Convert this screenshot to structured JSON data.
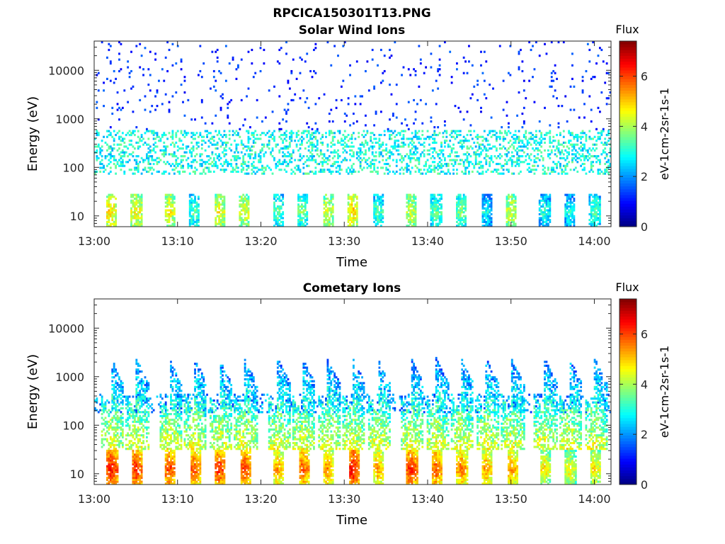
{
  "figure": {
    "title": "RPCICA150301T13.PNG"
  },
  "chart_data": [
    {
      "type": "heatmap",
      "title": "Solar Wind Ions",
      "xlabel": "Time",
      "ylabel": "Energy (eV)",
      "y_scale": "log",
      "ylim": [
        6,
        40000
      ],
      "xlim": [
        "13:00",
        "14:02"
      ],
      "x_ticks": [
        "13:00",
        "13:10",
        "13:20",
        "13:30",
        "13:40",
        "13:50",
        "14:00"
      ],
      "y_ticks": [
        "10",
        "100",
        "1000",
        "10000"
      ],
      "colorbar": {
        "title": "Flux",
        "label": "eV-1cm-2sr-1s-1",
        "range": [
          0,
          7.4
        ],
        "ticks": [
          "0",
          "2",
          "4",
          "6"
        ],
        "colormap": "jet"
      },
      "grid": false,
      "bursts": [
        {
          "t": "13:02",
          "peak": 5
        },
        {
          "t": "13:05",
          "peak": 4.8
        },
        {
          "t": "13:09",
          "peak": 4.7
        },
        {
          "t": "13:12",
          "peak": 3.5
        },
        {
          "t": "13:15",
          "peak": 4.6
        },
        {
          "t": "13:18",
          "peak": 4.6
        },
        {
          "t": "13:22",
          "peak": 3.6
        },
        {
          "t": "13:25",
          "peak": 3.8
        },
        {
          "t": "13:28",
          "peak": 4.5
        },
        {
          "t": "13:31",
          "peak": 5.0
        },
        {
          "t": "13:34",
          "peak": 3.5
        },
        {
          "t": "13:38",
          "peak": 4.4
        },
        {
          "t": "13:41",
          "peak": 3.6
        },
        {
          "t": "13:44",
          "peak": 3.8
        },
        {
          "t": "13:47",
          "peak": 3.0
        },
        {
          "t": "13:50",
          "peak": 4.5
        },
        {
          "t": "13:54",
          "peak": 3.2
        },
        {
          "t": "13:57",
          "peak": 3.0
        },
        {
          "t": "14:00",
          "peak": 3.5
        }
      ]
    },
    {
      "type": "heatmap",
      "title": "Cometary Ions",
      "xlabel": "Time",
      "ylabel": "Energy (eV)",
      "y_scale": "log",
      "ylim": [
        6,
        40000
      ],
      "xlim": [
        "13:00",
        "14:02"
      ],
      "x_ticks": [
        "13:00",
        "13:10",
        "13:20",
        "13:30",
        "13:40",
        "13:50",
        "14:00"
      ],
      "y_ticks": [
        "10",
        "100",
        "1000",
        "10000"
      ],
      "colorbar": {
        "title": "Flux",
        "label": "eV-1cm-2sr-1s-1",
        "range": [
          0,
          7.4
        ],
        "ticks": [
          "0",
          "2",
          "4",
          "6"
        ],
        "colormap": "jet"
      },
      "grid": false,
      "bursts": [
        {
          "t": "13:02",
          "peak": 6.5
        },
        {
          "t": "13:05",
          "peak": 6.4
        },
        {
          "t": "13:09",
          "peak": 6.2
        },
        {
          "t": "13:12",
          "peak": 6.0
        },
        {
          "t": "13:15",
          "peak": 6.3
        },
        {
          "t": "13:18",
          "peak": 6.2
        },
        {
          "t": "13:22",
          "peak": 5.5
        },
        {
          "t": "13:25",
          "peak": 6.0
        },
        {
          "t": "13:28",
          "peak": 5.6
        },
        {
          "t": "13:31",
          "peak": 6.6
        },
        {
          "t": "13:34",
          "peak": 5.5
        },
        {
          "t": "13:38",
          "peak": 6.3
        },
        {
          "t": "13:41",
          "peak": 6.0
        },
        {
          "t": "13:44",
          "peak": 5.8
        },
        {
          "t": "13:47",
          "peak": 5.5
        },
        {
          "t": "13:50",
          "peak": 5.6
        },
        {
          "t": "13:54",
          "peak": 5.0
        },
        {
          "t": "13:57",
          "peak": 4.8
        },
        {
          "t": "14:00",
          "peak": 5.0
        }
      ]
    }
  ]
}
